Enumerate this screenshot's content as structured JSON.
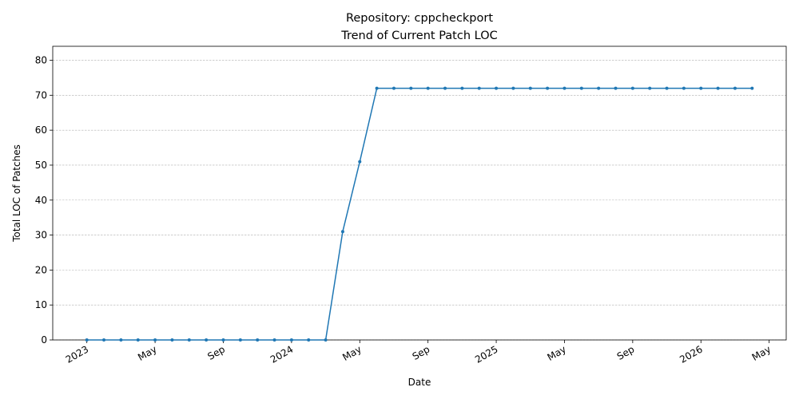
{
  "chart_data": {
    "type": "line",
    "title": "Repository: cppcheckport",
    "subtitle": "Trend of Current Patch LOC",
    "x_label": "Date",
    "y_label": "Total LOC of Patches",
    "x": [
      "2023-01",
      "2023-02",
      "2023-03",
      "2023-04",
      "2023-05",
      "2023-06",
      "2023-07",
      "2023-08",
      "2023-09",
      "2023-10",
      "2023-11",
      "2023-12",
      "2024-01",
      "2024-02",
      "2024-03",
      "2024-04",
      "2024-05",
      "2024-06",
      "2024-07",
      "2024-08",
      "2024-09",
      "2024-10",
      "2024-11",
      "2024-12",
      "2025-01",
      "2025-02",
      "2025-03",
      "2025-04",
      "2025-05",
      "2025-06",
      "2025-07",
      "2025-08",
      "2025-09",
      "2025-10",
      "2025-11",
      "2025-12",
      "2026-01",
      "2026-02",
      "2026-03",
      "2026-04"
    ],
    "series": [
      {
        "name": "Total LOC of Patches",
        "color": "#1f77b4",
        "values": [
          0,
          0,
          0,
          0,
          0,
          0,
          0,
          0,
          0,
          0,
          0,
          0,
          0,
          0,
          0,
          31,
          51,
          72,
          72,
          72,
          72,
          72,
          72,
          72,
          72,
          72,
          72,
          72,
          72,
          72,
          72,
          72,
          72,
          72,
          72,
          72,
          72,
          72,
          72,
          72
        ]
      }
    ],
    "xlim": [
      "2022-11",
      "2026-06"
    ],
    "xticks": [
      {
        "value": "2023-01",
        "label": "2023"
      },
      {
        "value": "2023-05",
        "label": "May"
      },
      {
        "value": "2023-09",
        "label": "Sep"
      },
      {
        "value": "2024-01",
        "label": "2024"
      },
      {
        "value": "2024-05",
        "label": "May"
      },
      {
        "value": "2024-09",
        "label": "Sep"
      },
      {
        "value": "2025-01",
        "label": "2025"
      },
      {
        "value": "2025-05",
        "label": "May"
      },
      {
        "value": "2025-09",
        "label": "Sep"
      },
      {
        "value": "2026-01",
        "label": "2026"
      },
      {
        "value": "2026-05",
        "label": "May"
      }
    ],
    "ylim": [
      0,
      84
    ],
    "yticks": [
      0,
      10,
      20,
      30,
      40,
      50,
      60,
      70,
      80
    ],
    "grid": true
  }
}
